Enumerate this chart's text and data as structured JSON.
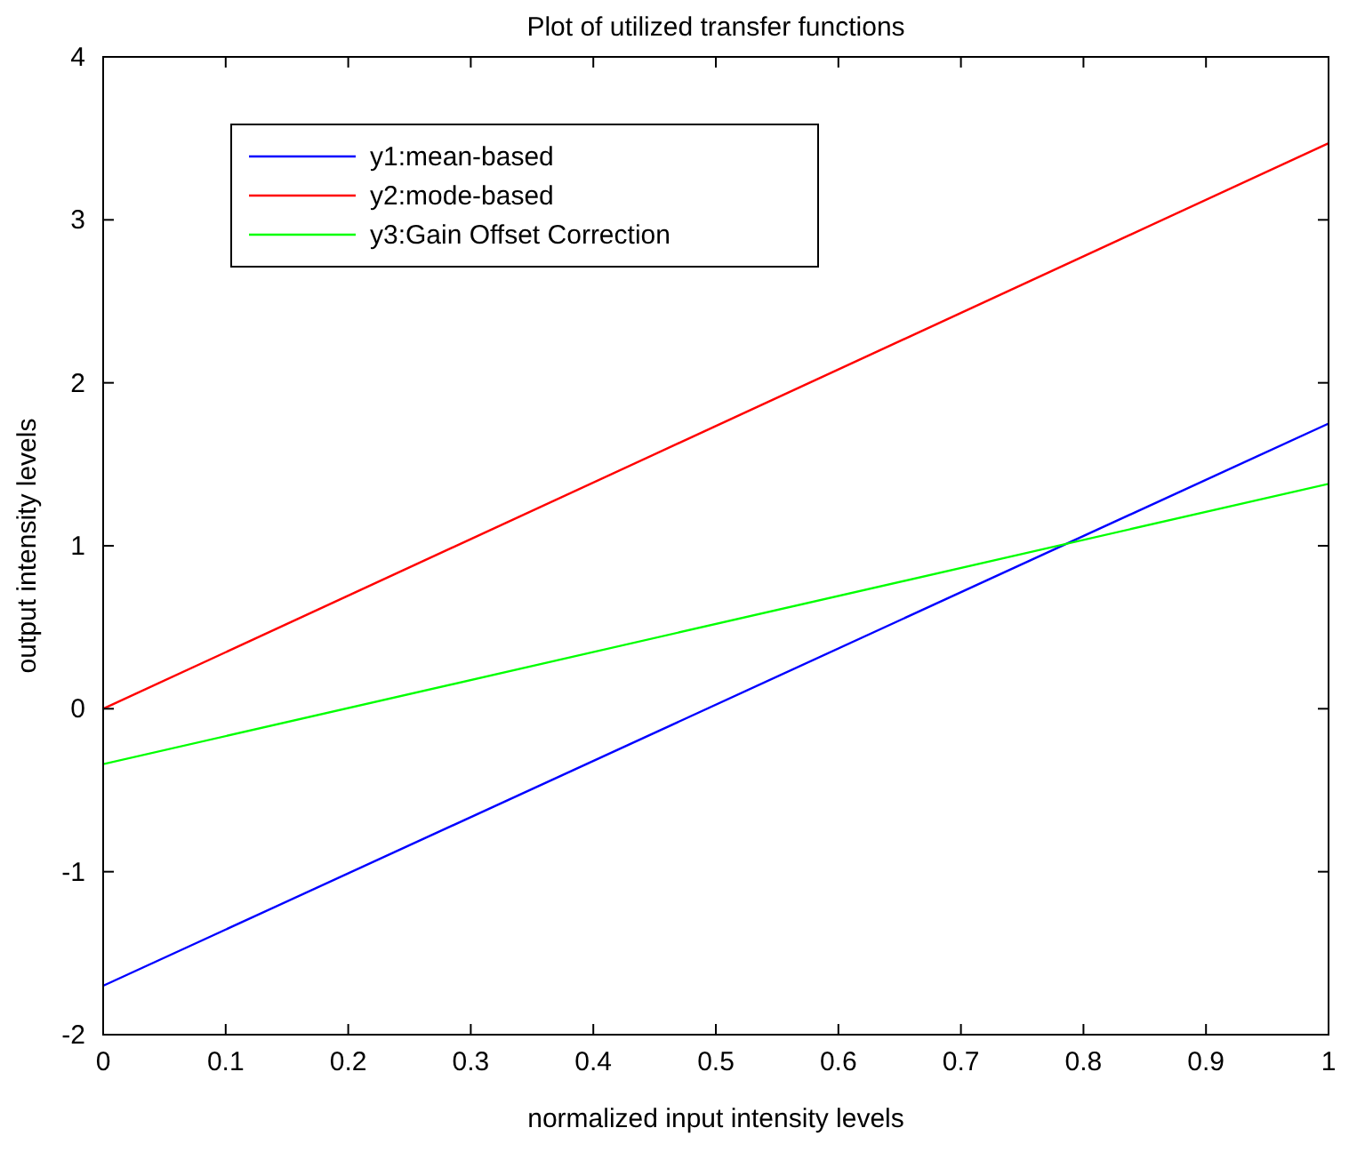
{
  "chart_data": {
    "type": "line",
    "title": "Plot of utilized transfer functions",
    "xlabel": "normalized input intensity levels",
    "ylabel": "output intensity levels",
    "x": [
      0,
      1
    ],
    "series": [
      {
        "name": "y1:mean-based",
        "color": "#0000ff",
        "values": [
          -1.7,
          1.75
        ]
      },
      {
        "name": "y2:mode-based",
        "color": "#ff0000",
        "values": [
          0,
          3.47
        ]
      },
      {
        "name": "y3:Gain Offset Correction",
        "color": "#00ff00",
        "values": [
          -0.34,
          1.38
        ]
      }
    ],
    "xlim": [
      0,
      1
    ],
    "ylim": [
      -2,
      4
    ],
    "xticks": [
      0,
      0.1,
      0.2,
      0.3,
      0.4,
      0.5,
      0.6,
      0.7,
      0.8,
      0.9,
      1
    ],
    "yticks": [
      -2,
      -1,
      0,
      1,
      2,
      3,
      4
    ],
    "grid": false,
    "legend": "top left",
    "marker": "none",
    "line_style": "solid"
  }
}
